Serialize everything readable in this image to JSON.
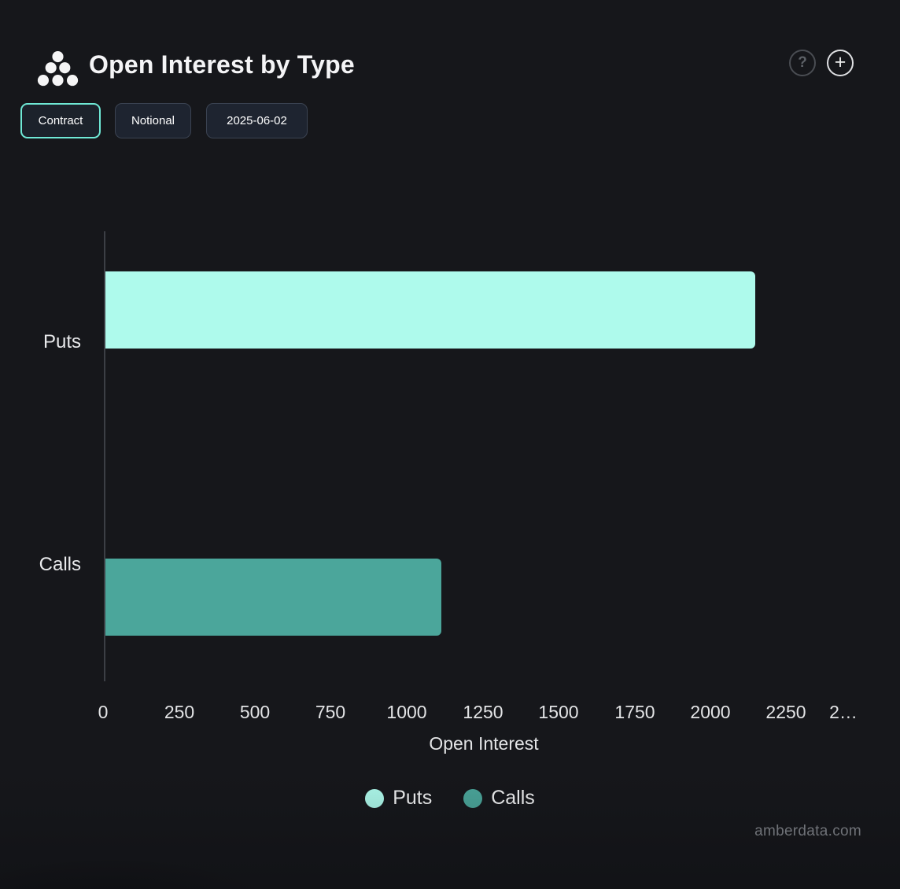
{
  "header": {
    "title": "Open Interest by Type",
    "logo_icon": "amberdata-logo",
    "help_label": "?",
    "add_label": "+"
  },
  "toolbar": {
    "buttons": [
      {
        "label": "Contract",
        "active": true
      },
      {
        "label": "Notional",
        "active": false
      },
      {
        "label": "2025-06-02",
        "active": false
      }
    ]
  },
  "chart_data": {
    "type": "bar",
    "orientation": "horizontal",
    "title": "Open Interest by Type",
    "categories": [
      "Puts",
      "Calls"
    ],
    "series": [
      {
        "name": "Puts",
        "value": 2140,
        "color": "#aefaec"
      },
      {
        "name": "Calls",
        "value": 1105,
        "color": "#4ba69b"
      }
    ],
    "xlabel": "Open Interest",
    "ylabel": "",
    "xlim": [
      0,
      2500
    ],
    "tick_labels": [
      "0",
      "250",
      "500",
      "750",
      "1000",
      "1250",
      "1500",
      "1750",
      "2000",
      "2250",
      "2…"
    ],
    "grid": false,
    "legend_position": "bottom",
    "legend": [
      "Puts",
      "Calls"
    ],
    "colors": {
      "background": "#16171b",
      "accent": "#6fe9d6",
      "axis": "#3c3f45"
    }
  },
  "footer": {
    "watermark": "amberdata.com"
  }
}
